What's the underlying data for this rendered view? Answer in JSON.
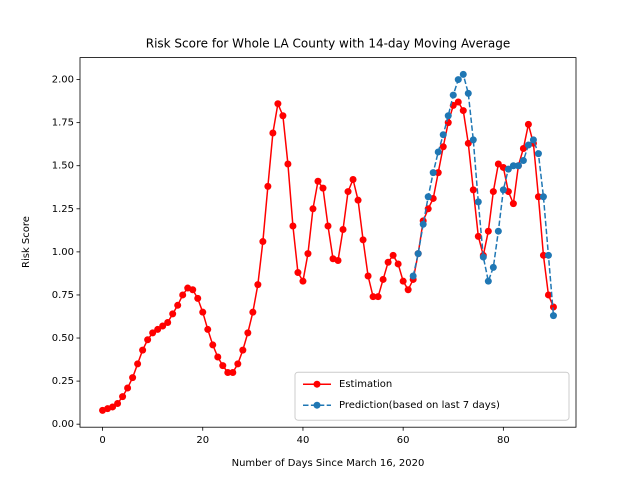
{
  "chart_data": {
    "type": "line",
    "title": "Risk Score for Whole LA County with 14-day Moving Average",
    "x_label": "Number of Days Since March 16, 2020",
    "y_label": "Risk Score",
    "xlim": [
      -4.5,
      94.5
    ],
    "ylim": [
      -0.0175,
      2.1275
    ],
    "xticks": [
      0,
      20,
      40,
      60,
      80
    ],
    "yticks": [
      {
        "value": 0,
        "label": "0.00"
      },
      {
        "value": 0.25,
        "label": "0.25"
      },
      {
        "value": 0.5,
        "label": "0.50"
      },
      {
        "value": 0.75,
        "label": "0.75"
      },
      {
        "value": 1,
        "label": "1.00"
      },
      {
        "value": 1.25,
        "label": "1.25"
      },
      {
        "value": 1.5,
        "label": "1.50"
      },
      {
        "value": 1.75,
        "label": "1.75"
      },
      {
        "value": 2,
        "label": "2.00"
      }
    ],
    "legend_position": "lower right",
    "series": [
      {
        "name": "Estimation",
        "color": "#ff0000",
        "linestyle": "solid",
        "x": [
          0,
          1,
          2,
          3,
          4,
          5,
          6,
          7,
          8,
          9,
          10,
          11,
          12,
          13,
          14,
          15,
          16,
          17,
          18,
          19,
          20,
          21,
          22,
          23,
          24,
          25,
          26,
          27,
          28,
          29,
          30,
          31,
          32,
          33,
          34,
          35,
          36,
          37,
          38,
          39,
          40,
          41,
          42,
          43,
          44,
          45,
          46,
          47,
          48,
          49,
          50,
          51,
          52,
          53,
          54,
          55,
          56,
          57,
          58,
          59,
          60,
          61,
          62,
          63,
          64,
          65,
          66,
          67,
          68,
          69,
          70,
          71,
          72,
          73,
          74,
          75,
          76,
          77,
          78,
          79,
          80,
          81,
          82,
          83,
          84,
          85,
          86,
          87,
          88,
          89,
          90
        ],
        "values": [
          0.08,
          0.09,
          0.1,
          0.12,
          0.16,
          0.21,
          0.27,
          0.35,
          0.43,
          0.49,
          0.53,
          0.55,
          0.57,
          0.59,
          0.64,
          0.69,
          0.75,
          0.79,
          0.78,
          0.73,
          0.65,
          0.55,
          0.46,
          0.39,
          0.34,
          0.3,
          0.3,
          0.35,
          0.43,
          0.53,
          0.65,
          0.81,
          1.06,
          1.38,
          1.69,
          1.86,
          1.79,
          1.51,
          1.15,
          0.88,
          0.83,
          0.99,
          1.25,
          1.41,
          1.37,
          1.15,
          0.96,
          0.95,
          1.13,
          1.35,
          1.42,
          1.3,
          1.07,
          0.86,
          0.74,
          0.74,
          0.84,
          0.94,
          0.98,
          0.93,
          0.83,
          0.78,
          0.84,
          0.99,
          1.18,
          1.25,
          1.31,
          1.46,
          1.61,
          1.75,
          1.85,
          1.87,
          1.82,
          1.63,
          1.36,
          1.09,
          0.98,
          1.12,
          1.35,
          1.51,
          1.49,
          1.35,
          1.28,
          1.5,
          1.6,
          1.74,
          1.63,
          1.32,
          0.98,
          0.75,
          0.68
        ]
      },
      {
        "name": "Prediction(based on last 7 days)",
        "color": "#1f77b4",
        "linestyle": "dashed",
        "x": [
          62,
          63,
          64,
          65,
          66,
          67,
          68,
          69,
          70,
          71,
          72,
          73,
          74,
          75,
          76,
          77,
          78,
          79,
          80,
          81,
          82,
          83,
          84,
          85,
          86,
          87,
          88,
          89,
          90
        ],
        "values": [
          0.86,
          0.99,
          1.16,
          1.32,
          1.46,
          1.58,
          1.68,
          1.79,
          1.91,
          2.0,
          2.03,
          1.92,
          1.65,
          1.29,
          0.97,
          0.83,
          0.91,
          1.12,
          1.36,
          1.48,
          1.5,
          1.5,
          1.53,
          1.62,
          1.65,
          1.57,
          1.32,
          0.98,
          0.63
        ]
      }
    ]
  }
}
